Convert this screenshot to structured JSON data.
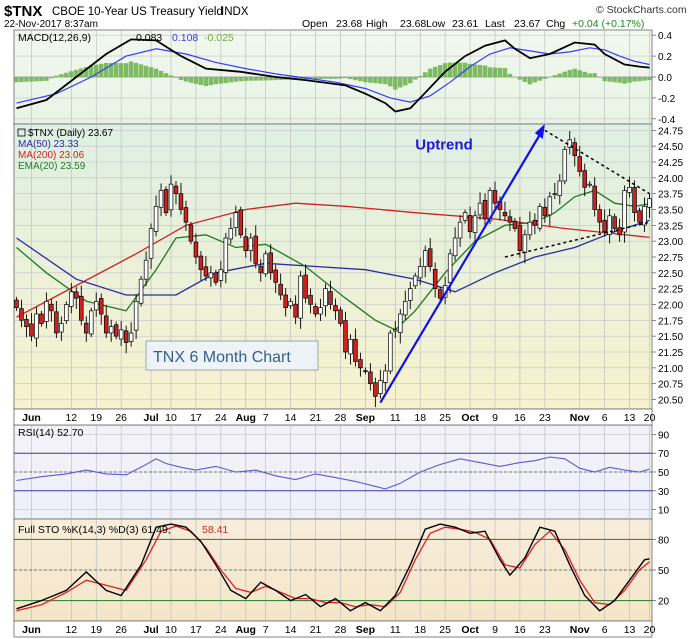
{
  "header": {
    "symbol": "$TNX",
    "name": "CBOE 10-Year US Treasury Yield",
    "exchange": "INDX",
    "date": "22-Nov-2017 8:37am",
    "open_label": "Open",
    "open": "23.68",
    "high_label": "High",
    "high": "23.68",
    "low_label": "Low",
    "low": "23.61",
    "last_label": "Last",
    "last": "23.67",
    "chg_label": "Chg",
    "chg": "+0.04 (+0.17%)",
    "watermark": "© StockCharts.com"
  },
  "colors": {
    "up": "#ffffff",
    "down": "#cc2222",
    "ma50": "#2a2aa8",
    "ma200": "#d42020",
    "ema20": "#1e7a1e",
    "macd": "#000000",
    "signal": "#3a3aff",
    "hist": "#6ab04a",
    "bg_macd": "#e8f4e6",
    "bg_price": "#f7f2cf",
    "bg_rsi": "#eef0fa",
    "bg_sto": "#f5e6c8"
  },
  "chart_data": [
    {
      "type": "line",
      "panel": "macd",
      "title": "MACD(12,26,9) 0.083, 0.108, -0.025",
      "legend": {
        "label": "MACD(12,26,9)",
        "macd": "0.083",
        "signal": "0.108",
        "hist": "-0.025"
      },
      "ylim": [
        -0.45,
        0.45
      ],
      "ticks": [
        "0.4",
        "0.2",
        "0.0",
        "-0.2",
        "-0.4"
      ],
      "tick_values": [
        0.4,
        0.2,
        0.0,
        -0.2,
        -0.4
      ],
      "macd_points": [
        [
          0,
          -0.3
        ],
        [
          6,
          -0.22
        ],
        [
          12,
          0.0
        ],
        [
          18,
          0.22
        ],
        [
          23,
          0.36
        ],
        [
          28,
          0.35
        ],
        [
          33,
          0.2
        ],
        [
          38,
          0.08
        ],
        [
          45,
          0.05
        ],
        [
          52,
          0.0
        ],
        [
          58,
          -0.03
        ],
        [
          66,
          -0.08
        ],
        [
          70,
          -0.16
        ],
        [
          74,
          -0.25
        ],
        [
          76,
          -0.33
        ],
        [
          79,
          -0.3
        ],
        [
          82,
          -0.15
        ],
        [
          86,
          0.05
        ],
        [
          90,
          0.2
        ],
        [
          94,
          0.3
        ],
        [
          98,
          0.35
        ],
        [
          100,
          0.27
        ],
        [
          103,
          0.18
        ],
        [
          107,
          0.22
        ],
        [
          112,
          0.33
        ],
        [
          116,
          0.31
        ],
        [
          118,
          0.22
        ],
        [
          122,
          0.12
        ],
        [
          125,
          0.1
        ],
        [
          127,
          0.09
        ]
      ],
      "signal_points": [
        [
          0,
          -0.25
        ],
        [
          8,
          -0.16
        ],
        [
          15,
          0.0
        ],
        [
          22,
          0.2
        ],
        [
          28,
          0.27
        ],
        [
          34,
          0.22
        ],
        [
          40,
          0.14
        ],
        [
          46,
          0.08
        ],
        [
          52,
          0.03
        ],
        [
          58,
          -0.01
        ],
        [
          64,
          -0.05
        ],
        [
          70,
          -0.11
        ],
        [
          75,
          -0.2
        ],
        [
          79,
          -0.24
        ],
        [
          83,
          -0.18
        ],
        [
          87,
          -0.05
        ],
        [
          91,
          0.1
        ],
        [
          95,
          0.22
        ],
        [
          99,
          0.28
        ],
        [
          103,
          0.25
        ],
        [
          107,
          0.22
        ],
        [
          111,
          0.24
        ],
        [
          115,
          0.28
        ],
        [
          118,
          0.26
        ],
        [
          121,
          0.2
        ],
        [
          124,
          0.15
        ],
        [
          127,
          0.12
        ]
      ]
    },
    {
      "type": "candlestick",
      "panel": "price",
      "title": "$TNX (Daily) 23.67",
      "ylim": [
        20.35,
        24.85
      ],
      "ticks": [
        "24.75",
        "24.50",
        "24.25",
        "24.00",
        "23.75",
        "23.50",
        "23.25",
        "23.00",
        "22.75",
        "22.50",
        "22.25",
        "22.00",
        "21.75",
        "21.50",
        "21.25",
        "21.00",
        "20.75",
        "20.50"
      ],
      "tick_values": [
        24.75,
        24.5,
        24.25,
        24.0,
        23.75,
        23.5,
        23.25,
        23.0,
        22.75,
        22.5,
        22.25,
        22.0,
        21.75,
        21.5,
        21.25,
        21.0,
        20.75,
        20.5
      ],
      "legend": [
        {
          "label": "$TNX (Daily) 23.67",
          "color": "#000000"
        },
        {
          "label": "MA(50) 23.33",
          "color": "#2a2aa8"
        },
        {
          "label": "MA(200) 23.06",
          "color": "#d42020"
        },
        {
          "label": "EMA(20) 23.59",
          "color": "#1e7a1e"
        }
      ],
      "annotations": {
        "uptrend": "Uptrend",
        "box": "TNX 6 Month Chart"
      },
      "closes": [
        21.95,
        21.75,
        21.65,
        21.5,
        21.85,
        21.7,
        22.05,
        21.9,
        21.55,
        21.7,
        22.0,
        22.2,
        22.1,
        21.75,
        21.55,
        21.9,
        22.05,
        21.85,
        21.55,
        21.65,
        21.5,
        21.6,
        21.4,
        21.55,
        22.05,
        22.4,
        22.7,
        23.2,
        23.55,
        23.8,
        23.45,
        23.9,
        23.75,
        23.5,
        23.3,
        23.0,
        22.75,
        22.55,
        22.45,
        22.5,
        22.35,
        22.55,
        23.05,
        23.2,
        23.45,
        23.1,
        22.85,
        23.05,
        22.65,
        22.5,
        22.8,
        22.5,
        22.35,
        22.15,
        21.95,
        22.05,
        21.8,
        22.45,
        22.1,
        22.0,
        21.85,
        21.95,
        22.25,
        22.0,
        21.9,
        21.7,
        21.25,
        21.45,
        21.1,
        21.0,
        20.95,
        20.75,
        20.55,
        20.8,
        20.95,
        21.55,
        21.6,
        21.85,
        22.05,
        22.25,
        22.45,
        22.6,
        22.85,
        22.6,
        22.25,
        22.1,
        22.3,
        22.8,
        23.05,
        23.3,
        23.45,
        23.15,
        23.4,
        23.6,
        23.35,
        23.8,
        23.6,
        23.5,
        23.4,
        23.3,
        23.2,
        22.85,
        23.1,
        23.3,
        23.25,
        23.55,
        23.4,
        23.7,
        23.75,
        23.95,
        24.45,
        24.6,
        24.35,
        24.1,
        23.85,
        23.9,
        23.5,
        23.3,
        23.15,
        23.4,
        23.2,
        23.1,
        23.8,
        23.85,
        23.45,
        23.3,
        23.55,
        23.67
      ],
      "ma50": [
        [
          0,
          23.05
        ],
        [
          12,
          22.4
        ],
        [
          22,
          22.15
        ],
        [
          32,
          22.15
        ],
        [
          40,
          22.5
        ],
        [
          50,
          22.65
        ],
        [
          60,
          22.6
        ],
        [
          70,
          22.55
        ],
        [
          80,
          22.4
        ],
        [
          88,
          22.2
        ],
        [
          96,
          22.5
        ],
        [
          104,
          22.75
        ],
        [
          112,
          22.9
        ],
        [
          120,
          23.15
        ],
        [
          127,
          23.33
        ]
      ],
      "ma200": [
        [
          0,
          21.8
        ],
        [
          12,
          22.3
        ],
        [
          24,
          22.8
        ],
        [
          34,
          23.25
        ],
        [
          46,
          23.5
        ],
        [
          56,
          23.6
        ],
        [
          66,
          23.55
        ],
        [
          80,
          23.45
        ],
        [
          96,
          23.35
        ],
        [
          110,
          23.2
        ],
        [
          120,
          23.12
        ],
        [
          127,
          23.06
        ]
      ],
      "ema20": [
        [
          0,
          22.9
        ],
        [
          6,
          22.5
        ],
        [
          14,
          22.05
        ],
        [
          22,
          21.9
        ],
        [
          28,
          22.55
        ],
        [
          32,
          23.05
        ],
        [
          38,
          23.1
        ],
        [
          44,
          22.9
        ],
        [
          50,
          22.95
        ],
        [
          58,
          22.6
        ],
        [
          66,
          22.1
        ],
        [
          72,
          21.75
        ],
        [
          76,
          21.6
        ],
        [
          80,
          21.9
        ],
        [
          86,
          22.5
        ],
        [
          92,
          23.0
        ],
        [
          98,
          23.25
        ],
        [
          104,
          23.3
        ],
        [
          108,
          23.45
        ],
        [
          112,
          23.7
        ],
        [
          116,
          23.8
        ],
        [
          120,
          23.6
        ],
        [
          124,
          23.55
        ],
        [
          127,
          23.59
        ]
      ]
    },
    {
      "type": "line",
      "panel": "rsi",
      "title": "RSI(14) 52.70",
      "ylim": [
        0,
        100
      ],
      "ticks": [
        "90",
        "70",
        "50",
        "30",
        "10"
      ],
      "tick_values": [
        90,
        70,
        50,
        30,
        10
      ],
      "points": [
        [
          0,
          41
        ],
        [
          5,
          45
        ],
        [
          10,
          48
        ],
        [
          14,
          52
        ],
        [
          18,
          48
        ],
        [
          22,
          47
        ],
        [
          26,
          58
        ],
        [
          28,
          64
        ],
        [
          30,
          59
        ],
        [
          33,
          55
        ],
        [
          36,
          52
        ],
        [
          40,
          56
        ],
        [
          44,
          50
        ],
        [
          48,
          52
        ],
        [
          52,
          46
        ],
        [
          56,
          42
        ],
        [
          60,
          48
        ],
        [
          64,
          44
        ],
        [
          68,
          40
        ],
        [
          71,
          36
        ],
        [
          74,
          32
        ],
        [
          77,
          38
        ],
        [
          81,
          50
        ],
        [
          85,
          58
        ],
        [
          89,
          64
        ],
        [
          93,
          60
        ],
        [
          97,
          56
        ],
        [
          101,
          60
        ],
        [
          104,
          62
        ],
        [
          107,
          66
        ],
        [
          110,
          64
        ],
        [
          113,
          54
        ],
        [
          116,
          50
        ],
        [
          119,
          55
        ],
        [
          122,
          52
        ],
        [
          125,
          50
        ],
        [
          127,
          53
        ]
      ]
    },
    {
      "type": "line",
      "panel": "sto",
      "title": "Full STO %K(14,3) %D(3) 61.49, 58.41",
      "ylim": [
        0,
        100
      ],
      "ticks": [
        "80",
        "50",
        "20"
      ],
      "tick_values": [
        80,
        50,
        20
      ],
      "k_points": [
        [
          0,
          12
        ],
        [
          5,
          20
        ],
        [
          10,
          30
        ],
        [
          14,
          48
        ],
        [
          18,
          30
        ],
        [
          21,
          25
        ],
        [
          25,
          55
        ],
        [
          28,
          92
        ],
        [
          31,
          95
        ],
        [
          34,
          92
        ],
        [
          37,
          78
        ],
        [
          40,
          55
        ],
        [
          43,
          30
        ],
        [
          46,
          22
        ],
        [
          49,
          38
        ],
        [
          52,
          30
        ],
        [
          55,
          20
        ],
        [
          58,
          26
        ],
        [
          61,
          14
        ],
        [
          64,
          22
        ],
        [
          67,
          10
        ],
        [
          70,
          18
        ],
        [
          73,
          10
        ],
        [
          76,
          25
        ],
        [
          79,
          55
        ],
        [
          82,
          90
        ],
        [
          85,
          95
        ],
        [
          88,
          92
        ],
        [
          91,
          86
        ],
        [
          94,
          88
        ],
        [
          97,
          60
        ],
        [
          99,
          45
        ],
        [
          102,
          62
        ],
        [
          105,
          92
        ],
        [
          108,
          88
        ],
        [
          111,
          55
        ],
        [
          114,
          25
        ],
        [
          117,
          10
        ],
        [
          120,
          20
        ],
        [
          123,
          40
        ],
        [
          126,
          60
        ],
        [
          127,
          61
        ]
      ],
      "d_points": [
        [
          0,
          10
        ],
        [
          5,
          16
        ],
        [
          10,
          28
        ],
        [
          14,
          40
        ],
        [
          18,
          35
        ],
        [
          22,
          30
        ],
        [
          26,
          60
        ],
        [
          29,
          88
        ],
        [
          32,
          93
        ],
        [
          35,
          88
        ],
        [
          38,
          72
        ],
        [
          41,
          50
        ],
        [
          44,
          32
        ],
        [
          47,
          28
        ],
        [
          50,
          34
        ],
        [
          53,
          28
        ],
        [
          56,
          22
        ],
        [
          59,
          22
        ],
        [
          62,
          18
        ],
        [
          65,
          18
        ],
        [
          68,
          14
        ],
        [
          71,
          16
        ],
        [
          74,
          14
        ],
        [
          77,
          28
        ],
        [
          80,
          60
        ],
        [
          83,
          86
        ],
        [
          86,
          92
        ],
        [
          89,
          90
        ],
        [
          92,
          87
        ],
        [
          95,
          80
        ],
        [
          98,
          55
        ],
        [
          101,
          52
        ],
        [
          104,
          75
        ],
        [
          107,
          88
        ],
        [
          110,
          70
        ],
        [
          113,
          40
        ],
        [
          116,
          18
        ],
        [
          119,
          16
        ],
        [
          122,
          30
        ],
        [
          125,
          50
        ],
        [
          127,
          58
        ]
      ]
    }
  ],
  "xaxis": {
    "labels": [
      "Jun",
      "12",
      "19",
      "26",
      "Jul",
      "10",
      "17",
      "24",
      "Aug",
      "7",
      "14",
      "21",
      "28",
      "Sep",
      "11",
      "18",
      "25",
      "Oct",
      "9",
      "16",
      "23",
      "Nov",
      "6",
      "13",
      "20"
    ],
    "label_idx": [
      3,
      11,
      16,
      21,
      27,
      31,
      36,
      41,
      46,
      50,
      55,
      60,
      65,
      70,
      76,
      81,
      86,
      91,
      96,
      101,
      106,
      113,
      118,
      123,
      127
    ],
    "bold": [
      "Jun",
      "Jul",
      "Aug",
      "Sep",
      "Oct",
      "Nov"
    ]
  }
}
